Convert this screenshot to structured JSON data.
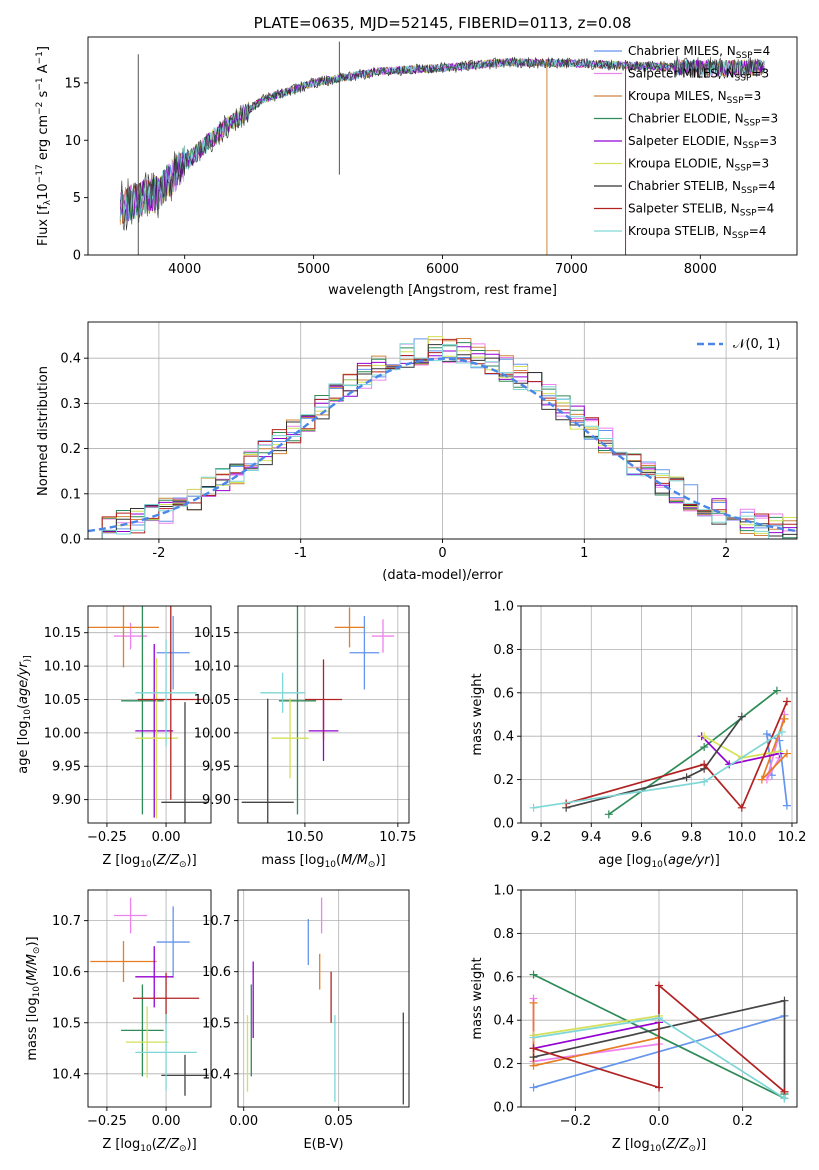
{
  "chart_data": [
    {
      "id": "spectrum",
      "type": "line",
      "title": "PLATE=0635, MJD=52145, FIBERID=0113, z=0.08",
      "xlabel": "wavelength [Angstrom, rest frame]",
      "ylabel": "Flux [f$_\\lambda$10$^{-17}$ erg cm$^{-2}$ s$^{-1}$ A$^{-1}$]",
      "ylabel_parts": [
        "Flux [f",
        "λ",
        "10",
        "−17",
        " erg cm",
        "−2",
        " s",
        "−1",
        " A",
        "−1",
        "]"
      ],
      "xlim": [
        3250,
        8750
      ],
      "ylim": [
        0,
        19
      ],
      "xticks": [
        4000,
        5000,
        6000,
        7000,
        8000
      ],
      "yticks": [
        0,
        5,
        10,
        15
      ],
      "legend": "top-right",
      "continuum_x": [
        3500,
        3800,
        4000,
        4300,
        4600,
        5000,
        5500,
        6000,
        6500,
        7000,
        7500,
        8000,
        8500
      ],
      "continuum_y": [
        4.2,
        5.5,
        8.0,
        11.0,
        13.5,
        15.0,
        16.0,
        16.3,
        16.8,
        16.7,
        16.5,
        16.3,
        16.3
      ],
      "series": [
        {
          "name": "Chabrier MILES, N",
          "sub": "SSP",
          "suffix": "=4",
          "color": "#6495ed"
        },
        {
          "name": "Salpeter MILES, N",
          "sub": "SSP",
          "suffix": "=3",
          "color": "#ee82ee"
        },
        {
          "name": "Kroupa MILES, N",
          "sub": "SSP",
          "suffix": "=3",
          "color": "#cd853f"
        },
        {
          "name": "Chabrier ELODIE, N",
          "sub": "SSP",
          "suffix": "=3",
          "color": "#2e8b57"
        },
        {
          "name": "Salpeter ELODIE, N",
          "sub": "SSP",
          "suffix": "=3",
          "color": "#9400d3"
        },
        {
          "name": "Kroupa ELODIE, N",
          "sub": "SSP",
          "suffix": "=3",
          "color": "#d4e157"
        },
        {
          "name": "Chabrier STELIB, N",
          "sub": "SSP",
          "suffix": "=4",
          "color": "#333333"
        },
        {
          "name": "Salpeter STELIB, N",
          "sub": "SSP",
          "suffix": "=4",
          "color": "#b22222"
        },
        {
          "name": "Kroupa STELIB, N",
          "sub": "SSP",
          "suffix": "=4",
          "color": "#7fd6d6"
        }
      ]
    },
    {
      "id": "residuals",
      "type": "area",
      "xlabel": "(data-model)/error",
      "ylabel": "Normed distribution",
      "xlim": [
        -2.5,
        2.5
      ],
      "ylim": [
        0,
        0.48
      ],
      "xticks": [
        -2,
        -1,
        0,
        1,
        2
      ],
      "yticks": [
        0.0,
        0.1,
        0.2,
        0.3,
        0.4
      ],
      "ytick_labels": [
        "0.0",
        "0.1",
        "0.2",
        "0.3",
        "0.4"
      ],
      "grid": true,
      "legend": "top-right",
      "reference": {
        "name": "𝒩(0, 1)",
        "color": "#4a86e8",
        "dashed": true
      },
      "histogram_bin_width": 0.1,
      "histogram_colors": [
        "#6495ed",
        "#ee82ee",
        "#cd853f",
        "#2e8b57",
        "#9400d3",
        "#d4e157",
        "#333333",
        "#b22222",
        "#7fd6d6"
      ]
    },
    {
      "id": "age_vs_Z",
      "type": "scatter",
      "xlabel": "Z [log$_{10}$(Z/Z$_\\odot$)]",
      "xlabel_parts": [
        "Z [log",
        "10",
        "(",
        "Z/Z",
        "⊙",
        ")]"
      ],
      "ylabel": "age  [log$_{10}$(age/yr)]",
      "ylabel_parts": [
        "age  [log",
        "10",
        "(",
        "age/yr",
        ")]"
      ],
      "xlim": [
        -0.33,
        0.19
      ],
      "ylim": [
        9.865,
        10.19
      ],
      "xticks": [
        -0.25,
        0.0
      ],
      "xtick_labels": [
        "−0.25",
        "0.00"
      ],
      "yticks": [
        9.9,
        9.95,
        10.0,
        10.05,
        10.1,
        10.15
      ],
      "ytick_labels": [
        "9.90",
        "9.95",
        "10.00",
        "10.05",
        "10.10",
        "10.15"
      ],
      "grid": true,
      "points": [
        {
          "x": 0.03,
          "y": 10.12,
          "xerr": 0.07,
          "yerr": 0.055,
          "color": "#6495ed"
        },
        {
          "x": -0.15,
          "y": 10.145,
          "xerr": 0.07,
          "yerr": 0.02,
          "color": "#ee82ee"
        },
        {
          "x": -0.18,
          "y": 10.158,
          "xerr": 0.15,
          "yerr": 0.06,
          "color": "#e67e22"
        },
        {
          "x": -0.1,
          "y": 10.048,
          "xerr": 0.09,
          "yerr": 0.17,
          "color": "#2e8b57"
        },
        {
          "x": -0.05,
          "y": 10.003,
          "xerr": 0.08,
          "yerr": 0.13,
          "color": "#9400d3"
        },
        {
          "x": -0.04,
          "y": 9.992,
          "xerr": 0.09,
          "yerr": 0.12,
          "color": "#d4e157"
        },
        {
          "x": 0.08,
          "y": 9.896,
          "xerr": 0.1,
          "yerr": 0.15,
          "color": "#444444"
        },
        {
          "x": 0.02,
          "y": 10.05,
          "xerr": 0.14,
          "yerr": 0.15,
          "color": "#b22222"
        },
        {
          "x": 0.0,
          "y": 10.06,
          "xerr": 0.13,
          "yerr": 0.08,
          "color": "#7fd6d6"
        }
      ]
    },
    {
      "id": "age_vs_mass",
      "type": "scatter",
      "xlabel": "mass [log$_{10}$(M/M$_\\odot$)]",
      "xlabel_parts": [
        "mass [log",
        "10",
        "(",
        "M/M",
        "⊙",
        ")]"
      ],
      "xlim": [
        10.32,
        10.78
      ],
      "ylim": [
        9.865,
        10.19
      ],
      "xticks": [
        10.5,
        10.75
      ],
      "xtick_labels": [
        "10.50",
        "10.75"
      ],
      "yticks": [
        9.9,
        9.95,
        10.0,
        10.05,
        10.1,
        10.15
      ],
      "ytick_labels": [
        "9.90",
        "9.95",
        "10.00",
        "10.05",
        "10.10",
        "10.15"
      ],
      "grid": true,
      "points": [
        {
          "x": 10.66,
          "y": 10.12,
          "xerr": 0.04,
          "yerr": 0.055,
          "color": "#6495ed"
        },
        {
          "x": 10.71,
          "y": 10.145,
          "xerr": 0.03,
          "yerr": 0.025,
          "color": "#ee82ee"
        },
        {
          "x": 10.62,
          "y": 10.158,
          "xerr": 0.04,
          "yerr": 0.03,
          "color": "#e67e22"
        },
        {
          "x": 10.48,
          "y": 10.048,
          "xerr": 0.05,
          "yerr": 0.17,
          "color": "#2e8b57"
        },
        {
          "x": 10.55,
          "y": 10.003,
          "xerr": 0.04,
          "yerr": 0.045,
          "color": "#9400d3"
        },
        {
          "x": 10.46,
          "y": 9.992,
          "xerr": 0.05,
          "yerr": 0.06,
          "color": "#d4e157"
        },
        {
          "x": 10.4,
          "y": 9.896,
          "xerr": 0.07,
          "yerr": 0.155,
          "color": "#444444"
        },
        {
          "x": 10.55,
          "y": 10.05,
          "xerr": 0.05,
          "yerr": 0.06,
          "color": "#b22222"
        },
        {
          "x": 10.44,
          "y": 10.06,
          "xerr": 0.06,
          "yerr": 0.03,
          "color": "#7fd6d6"
        }
      ]
    },
    {
      "id": "weight_vs_age",
      "type": "line",
      "xlabel": "age  [log$_{10}$(age/yr)]",
      "xlabel_parts": [
        "age  [log",
        "10",
        "(",
        "age/yr",
        ")]"
      ],
      "ylabel": "mass weight",
      "xlim": [
        9.12,
        10.22
      ],
      "ylim": [
        0.0,
        1.0
      ],
      "xticks": [
        9.2,
        9.4,
        9.6,
        9.8,
        10.0,
        10.2
      ],
      "xtick_labels": [
        "9.2",
        "9.4",
        "9.6",
        "9.8",
        "10.0",
        "10.2"
      ],
      "yticks": [
        0.0,
        0.2,
        0.4,
        0.6,
        0.8,
        1.0
      ],
      "ytick_labels": [
        "0.0",
        "0.2",
        "0.4",
        "0.6",
        "0.8",
        "1.0"
      ],
      "grid": true,
      "series": [
        {
          "color": "#6495ed",
          "x": [
            10.18,
            10.15,
            10.1,
            10.12
          ],
          "y": [
            0.08,
            0.38,
            0.41,
            0.22
          ]
        },
        {
          "color": "#ee82ee",
          "x": [
            10.17,
            10.1,
            10.15
          ],
          "y": [
            0.5,
            0.2,
            0.3
          ]
        },
        {
          "color": "#e67e22",
          "x": [
            10.17,
            10.08,
            10.18
          ],
          "y": [
            0.48,
            0.2,
            0.32
          ]
        },
        {
          "color": "#2e8b57",
          "x": [
            9.47,
            9.85,
            10.14
          ],
          "y": [
            0.04,
            0.35,
            0.61
          ]
        },
        {
          "color": "#9400d3",
          "x": [
            9.84,
            9.95,
            10.15
          ],
          "y": [
            0.4,
            0.27,
            0.32
          ]
        },
        {
          "color": "#d4e157",
          "x": [
            9.85,
            10.0,
            10.15
          ],
          "y": [
            0.4,
            0.3,
            0.33
          ]
        },
        {
          "color": "#444444",
          "x": [
            9.3,
            9.78,
            9.85,
            10.0
          ],
          "y": [
            0.07,
            0.21,
            0.25,
            0.49
          ]
        },
        {
          "color": "#b22222",
          "x": [
            9.3,
            9.85,
            10.0,
            10.18
          ],
          "y": [
            0.09,
            0.27,
            0.07,
            0.56
          ]
        },
        {
          "color": "#7fd6d6",
          "x": [
            9.17,
            9.85,
            10.16
          ],
          "y": [
            0.07,
            0.19,
            0.42
          ]
        }
      ]
    },
    {
      "id": "mass_vs_Z",
      "type": "scatter",
      "xlabel": "Z [log$_{10}$(Z/Z$_\\odot$)]",
      "xlabel_parts": [
        "Z [log",
        "10",
        "(",
        "Z/Z",
        "⊙",
        ")]"
      ],
      "ylabel": "mass [log$_{10}$(M/M$_\\odot$)]",
      "ylabel_parts": [
        "mass [log",
        "10",
        "(",
        "M/M",
        "⊙",
        ")]"
      ],
      "xlim": [
        -0.33,
        0.19
      ],
      "ylim": [
        10.335,
        10.76
      ],
      "xticks": [
        -0.25,
        0.0
      ],
      "xtick_labels": [
        "−0.25",
        "0.00"
      ],
      "yticks": [
        10.4,
        10.5,
        10.6,
        10.7
      ],
      "ytick_labels": [
        "10.4",
        "10.5",
        "10.6",
        "10.7"
      ],
      "grid": true,
      "points": [
        {
          "x": 0.03,
          "y": 10.658,
          "xerr": 0.07,
          "yerr": 0.07,
          "color": "#6495ed"
        },
        {
          "x": -0.15,
          "y": 10.71,
          "xerr": 0.07,
          "yerr": 0.035,
          "color": "#ee82ee"
        },
        {
          "x": -0.18,
          "y": 10.62,
          "xerr": 0.14,
          "yerr": 0.04,
          "color": "#e67e22"
        },
        {
          "x": -0.1,
          "y": 10.485,
          "xerr": 0.09,
          "yerr": 0.09,
          "color": "#2e8b57"
        },
        {
          "x": -0.05,
          "y": 10.59,
          "xerr": 0.08,
          "yerr": 0.06,
          "color": "#9400d3"
        },
        {
          "x": -0.08,
          "y": 10.462,
          "xerr": 0.09,
          "yerr": 0.07,
          "color": "#d4e157"
        },
        {
          "x": 0.08,
          "y": 10.397,
          "xerr": 0.1,
          "yerr": 0.04,
          "color": "#444444"
        },
        {
          "x": 0.0,
          "y": 10.548,
          "xerr": 0.14,
          "yerr": 0.05,
          "color": "#b22222"
        },
        {
          "x": 0.0,
          "y": 10.442,
          "xerr": 0.13,
          "yerr": 0.075,
          "color": "#7fd6d6"
        }
      ]
    },
    {
      "id": "mass_vs_ebv",
      "type": "scatter",
      "xlabel": "E(B-V)",
      "xlim": [
        -0.003,
        0.087
      ],
      "ylim": [
        10.335,
        10.76
      ],
      "xticks": [
        0.0,
        0.05
      ],
      "xtick_labels": [
        "0.00",
        "0.05"
      ],
      "yticks": [
        10.4,
        10.5,
        10.6,
        10.7
      ],
      "ytick_labels": [
        "10.4",
        "10.5",
        "10.6",
        "10.7"
      ],
      "grid": true,
      "points": [
        {
          "x": 0.034,
          "y": 10.658,
          "xerr": 0,
          "yerr": 0.045,
          "color": "#6495ed"
        },
        {
          "x": 0.041,
          "y": 10.71,
          "xerr": 0,
          "yerr": 0.035,
          "color": "#ee82ee"
        },
        {
          "x": 0.04,
          "y": 10.6,
          "xerr": 0,
          "yerr": 0.035,
          "color": "#e67e22"
        },
        {
          "x": 0.004,
          "y": 10.485,
          "xerr": 0,
          "yerr": 0.09,
          "color": "#2e8b57"
        },
        {
          "x": 0.005,
          "y": 10.545,
          "xerr": 0,
          "yerr": 0.075,
          "color": "#9400d3"
        },
        {
          "x": 0.002,
          "y": 10.44,
          "xerr": 0,
          "yerr": 0.075,
          "color": "#d4e157"
        },
        {
          "x": 0.084,
          "y": 10.43,
          "xerr": 0,
          "yerr": 0.09,
          "color": "#444444"
        },
        {
          "x": 0.046,
          "y": 10.55,
          "xerr": 0,
          "yerr": 0.05,
          "color": "#b22222"
        },
        {
          "x": 0.048,
          "y": 10.43,
          "xerr": 0,
          "yerr": 0.085,
          "color": "#7fd6d6"
        }
      ]
    },
    {
      "id": "weight_vs_Z",
      "type": "line",
      "xlabel": "Z [log$_{10}$(Z/Z$_\\odot$)]",
      "xlabel_parts": [
        "Z [log",
        "10",
        "(",
        "Z/Z",
        "⊙",
        ")]"
      ],
      "ylabel": "mass weight",
      "xlim": [
        -0.33,
        0.33
      ],
      "ylim": [
        0.0,
        1.0
      ],
      "xticks": [
        -0.2,
        0.0,
        0.2
      ],
      "xtick_labels": [
        "−0.2",
        "0.0",
        "0.2"
      ],
      "yticks": [
        0.0,
        0.2,
        0.4,
        0.6,
        0.8,
        1.0
      ],
      "ytick_labels": [
        "0.0",
        "0.2",
        "0.4",
        "0.6",
        "0.8",
        "1.0"
      ],
      "grid": true,
      "series": [
        {
          "color": "#6495ed",
          "x": [
            -0.3,
            0.3
          ],
          "y": [
            0.09,
            0.42
          ]
        },
        {
          "color": "#ee82ee",
          "x": [
            -0.3,
            -0.3,
            0.0
          ],
          "y": [
            0.5,
            0.21,
            0.29
          ]
        },
        {
          "color": "#e67e22",
          "x": [
            -0.3,
            -0.3,
            0.0
          ],
          "y": [
            0.48,
            0.19,
            0.32
          ]
        },
        {
          "color": "#2e8b57",
          "x": [
            -0.3,
            0.3,
            0.3
          ],
          "y": [
            0.61,
            0.04,
            0.06
          ]
        },
        {
          "color": "#9400d3",
          "x": [
            -0.3,
            0.0
          ],
          "y": [
            0.27,
            0.39
          ]
        },
        {
          "color": "#d4e157",
          "x": [
            -0.3,
            0.0
          ],
          "y": [
            0.33,
            0.42
          ]
        },
        {
          "color": "#444444",
          "x": [
            -0.3,
            0.3,
            0.3
          ],
          "y": [
            0.23,
            0.49,
            0.07
          ]
        },
        {
          "color": "#b22222",
          "x": [
            -0.3,
            0.0,
            0.0,
            0.3
          ],
          "y": [
            0.27,
            0.09,
            0.56,
            0.07
          ]
        },
        {
          "color": "#7fd6d6",
          "x": [
            -0.3,
            0.0,
            0.3
          ],
          "y": [
            0.32,
            0.41,
            0.04
          ]
        }
      ]
    }
  ]
}
